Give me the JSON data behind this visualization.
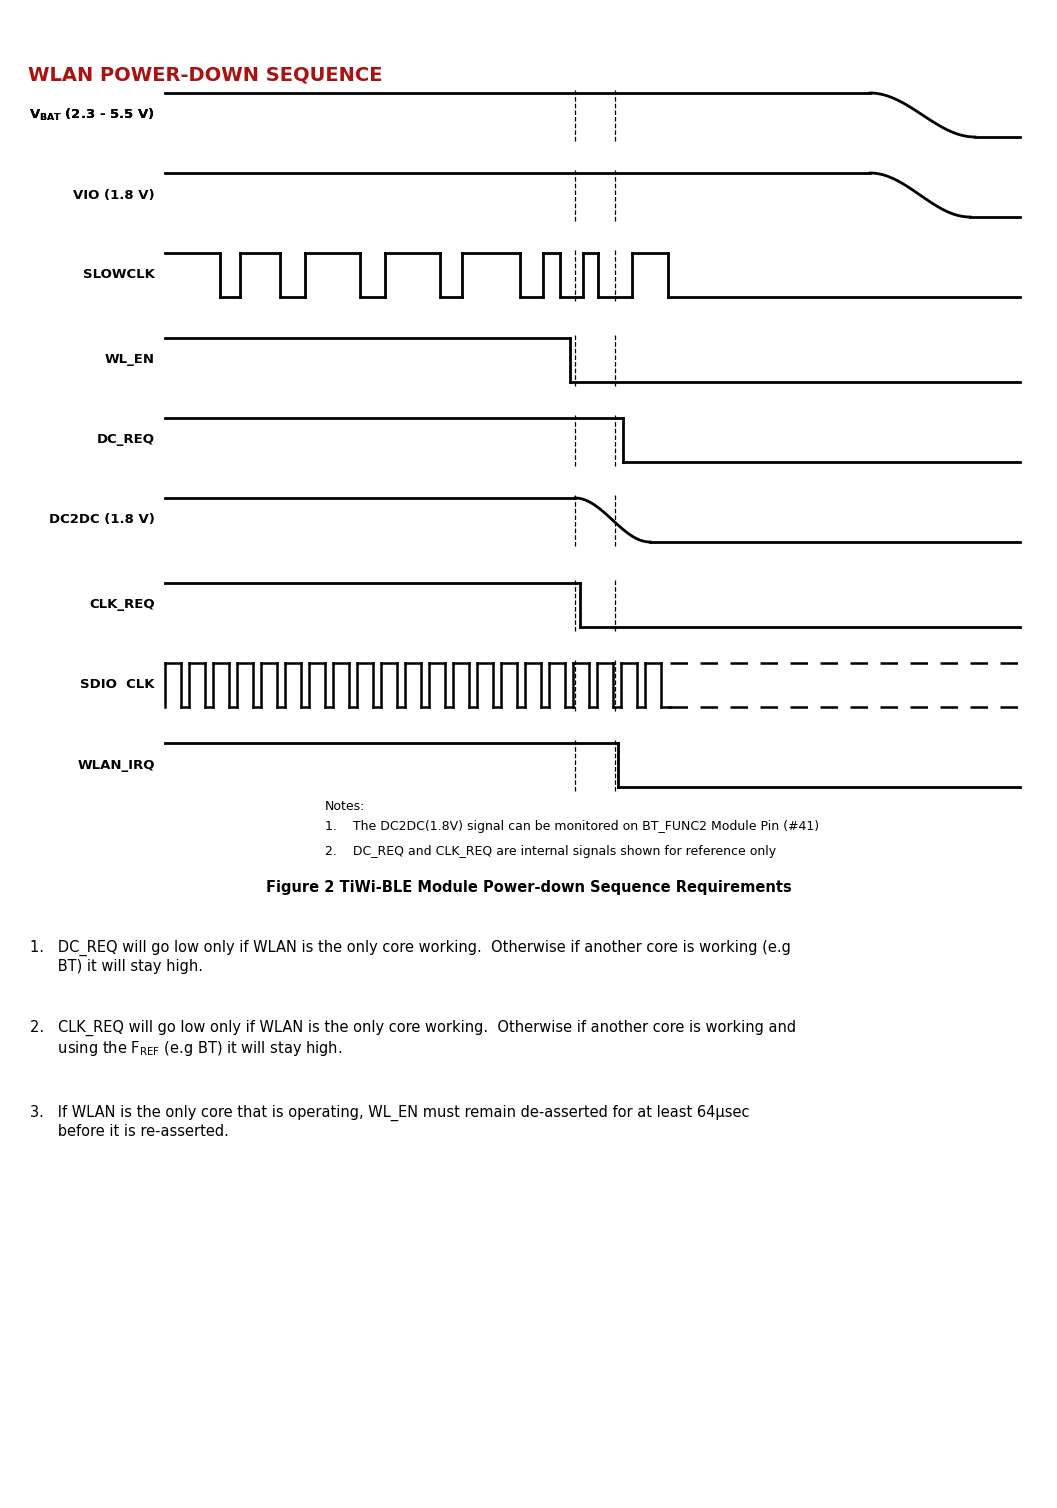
{
  "title": "WLAN POWER-DOWN SEQUENCE",
  "title_color": "#aa1111",
  "bg_color": "#ffffff",
  "signals": [
    "V$_{\\mathbf{BAT}}$ (2.3 - 5.5 V)",
    "VIO (1.8 V)",
    "SLOWCLK",
    "WL_EN",
    "DC_REQ",
    "DC2DC (1.8 V)",
    "CLK_REQ",
    "SDIO  CLK",
    "WLAN_IRQ"
  ],
  "signal_types": [
    "analog_fall_slow",
    "analog_fall_slow2",
    "clock_stop",
    "fall_step_wlen",
    "fall_step_dcreq",
    "analog_fall_medium",
    "fall_step_clkreq",
    "fast_clock_dashed",
    "fall_step_wlanirq"
  ],
  "dline1": 0.555,
  "dline2": 0.592,
  "note_line1": "Notes:",
  "note_line2": "1.    The DC2DC(1.8V) signal can be monitored on BT_FUNC2 Module Pin (#41)",
  "note_line3": "2.    DC_REQ and CLK_REQ are internal signals shown for reference only",
  "figure_caption": "Figure 2 TiWi-BLE Module Power-down Sequence Requirements",
  "req1": "1.   DC_REQ will go low only if WLAN is the only core working.  Otherwise if another core is working (e.g\n     BT) it will stay high.",
  "req3": "3.   If WLAN is the only core that is operating, WL_EN must remain de-asserted for at least 64μsec\n     before it is re-asserted."
}
